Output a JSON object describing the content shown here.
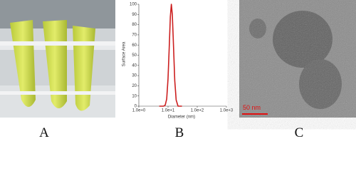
{
  "panels": [
    {
      "label": "A"
    },
    {
      "label": "B"
    },
    {
      "label": "C",
      "scale_bar": "50 nm"
    }
  ],
  "chart_data": {
    "type": "line",
    "x_label": "Diameter (nm)",
    "y_label": "Surface Area",
    "x": [
      5,
      6,
      7,
      8,
      9,
      10,
      11,
      12,
      13,
      14,
      15,
      17,
      19,
      22,
      25,
      30
    ],
    "series": [
      {
        "color": "#cc1f1f",
        "values": [
          0,
          0,
          0,
          1,
          7,
          27,
          58,
          88,
          100,
          90,
          68,
          25,
          6,
          0,
          0,
          0
        ]
      }
    ],
    "xscale": "log",
    "xlim": [
      1,
      1000
    ],
    "xticks": [
      {
        "value": 1,
        "label": "1.0e+0"
      },
      {
        "value": 10,
        "label": "1.0e+1"
      },
      {
        "value": 100,
        "label": "1.0e+2"
      },
      {
        "value": 1000,
        "label": "1.0e+3"
      }
    ],
    "ylim": [
      0,
      100
    ],
    "yticks": [
      0,
      10,
      20,
      30,
      40,
      50,
      60,
      70,
      80,
      90,
      100
    ]
  }
}
